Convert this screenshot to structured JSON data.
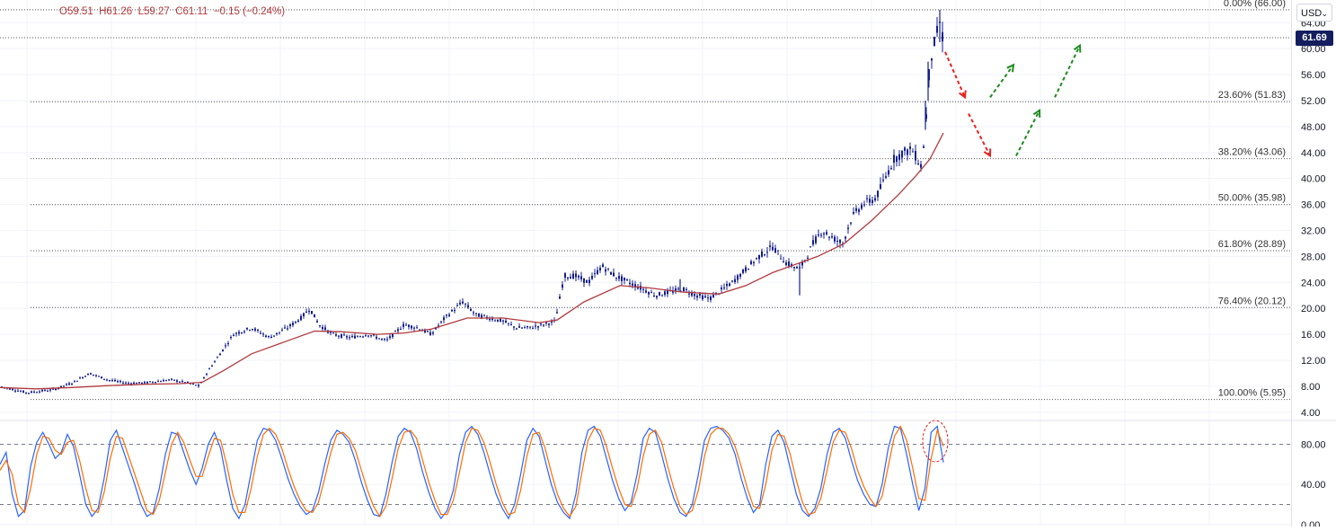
{
  "legend": {
    "open": "O59.51",
    "high": "H61.26",
    "low": "L59.27",
    "close": "C61.11",
    "change": "−0.15 (−0.24%)"
  },
  "toolbar": {
    "currency": "USD"
  },
  "colors": {
    "candle": "#131e8c",
    "ma": "#b23a3e",
    "fib_line": "#555555",
    "stoch_k": "#2962ff",
    "stoch_d": "#ff6d00",
    "down_arrow": "#e8211f",
    "up_arrow": "#1f8a1f",
    "highlight": "#e8211f"
  },
  "chart_data": [
    {
      "type": "candlestick",
      "price_axis": {
        "ticks": [
          "64.00",
          "60.00",
          "56.00",
          "52.00",
          "48.00",
          "44.00",
          "40.00",
          "36.00",
          "32.00",
          "28.00",
          "24.00",
          "20.00",
          "16.00",
          "12.00",
          "8.00",
          "4.00"
        ],
        "ylim": [
          3,
          67.5
        ],
        "current_price": "61.69"
      },
      "fibonacci_levels": [
        {
          "label": "0.00% (66.00)",
          "value": 66.0
        },
        {
          "label": "23.60% (51.83)",
          "value": 51.83
        },
        {
          "label": "38.20% (43.06)",
          "value": 43.06
        },
        {
          "label": "50.00% (35.98)",
          "value": 35.98
        },
        {
          "label": "61.80% (28.89)",
          "value": 28.89
        },
        {
          "label": "76.40% (20.12)",
          "value": 20.12
        },
        {
          "label": "100.00% (5.95)",
          "value": 5.95
        }
      ],
      "current_price_line": 61.69,
      "price_path": [
        [
          0,
          8
        ],
        [
          30,
          7
        ],
        [
          60,
          7.5
        ],
        [
          80,
          8.5
        ],
        [
          100,
          10
        ],
        [
          120,
          9
        ],
        [
          140,
          8.5
        ],
        [
          160,
          8.5
        ],
        [
          190,
          9
        ],
        [
          210,
          8.5
        ],
        [
          222,
          8
        ],
        [
          230,
          10
        ],
        [
          245,
          13
        ],
        [
          260,
          16
        ],
        [
          280,
          17
        ],
        [
          300,
          15.5
        ],
        [
          320,
          17
        ],
        [
          335,
          18.5
        ],
        [
          345,
          20
        ],
        [
          355,
          17.5
        ],
        [
          370,
          16
        ],
        [
          390,
          15.5
        ],
        [
          410,
          16
        ],
        [
          430,
          15
        ],
        [
          450,
          17.5
        ],
        [
          465,
          17
        ],
        [
          480,
          16
        ],
        [
          495,
          18.5
        ],
        [
          515,
          21
        ],
        [
          530,
          19
        ],
        [
          545,
          18.5
        ],
        [
          560,
          18
        ],
        [
          575,
          17
        ],
        [
          590,
          17
        ],
        [
          605,
          17.5
        ],
        [
          618,
          18
        ],
        [
          628,
          25
        ],
        [
          640,
          25
        ],
        [
          655,
          24
        ],
        [
          670,
          26.5
        ],
        [
          685,
          25
        ],
        [
          700,
          24
        ],
        [
          715,
          23
        ],
        [
          730,
          22
        ],
        [
          745,
          22.5
        ],
        [
          760,
          23
        ],
        [
          775,
          22
        ],
        [
          790,
          21.5
        ],
        [
          800,
          22.5
        ],
        [
          815,
          24
        ],
        [
          830,
          26
        ],
        [
          845,
          28
        ],
        [
          860,
          29.5
        ],
        [
          875,
          27
        ],
        [
          890,
          26
        ],
        [
          898,
          28
        ],
        [
          905,
          30
        ],
        [
          915,
          32
        ],
        [
          925,
          31
        ],
        [
          938,
          30
        ],
        [
          948,
          34
        ],
        [
          960,
          36
        ],
        [
          975,
          37
        ],
        [
          985,
          40
        ],
        [
          995,
          43
        ],
        [
          1005,
          44
        ],
        [
          1015,
          44.5
        ],
        [
          1025,
          42
        ],
        [
          1030,
          47
        ],
        [
          1033,
          55
        ],
        [
          1037,
          59
        ],
        [
          1042,
          62
        ],
        [
          1046,
          64
        ],
        [
          1050,
          61.11
        ]
      ],
      "moving_average": [
        [
          0,
          7.8
        ],
        [
          40,
          7.6
        ],
        [
          80,
          7.8
        ],
        [
          120,
          8.1
        ],
        [
          160,
          8.3
        ],
        [
          200,
          8.4
        ],
        [
          225,
          8.6
        ],
        [
          250,
          10.5
        ],
        [
          280,
          13
        ],
        [
          320,
          15
        ],
        [
          350,
          16.5
        ],
        [
          380,
          16.4
        ],
        [
          420,
          16
        ],
        [
          450,
          16.2
        ],
        [
          480,
          16.8
        ],
        [
          520,
          18.5
        ],
        [
          560,
          18.5
        ],
        [
          600,
          17.8
        ],
        [
          620,
          18.2
        ],
        [
          650,
          21
        ],
        [
          690,
          23.5
        ],
        [
          720,
          23.2
        ],
        [
          760,
          22.5
        ],
        [
          800,
          22.2
        ],
        [
          830,
          23.5
        ],
        [
          860,
          25.5
        ],
        [
          890,
          27
        ],
        [
          910,
          28
        ],
        [
          940,
          30
        ],
        [
          970,
          33.5
        ],
        [
          1000,
          37.5
        ],
        [
          1020,
          40.5
        ],
        [
          1035,
          43
        ],
        [
          1050,
          47
        ]
      ],
      "annotations": [
        {
          "kind": "down_arrow",
          "from": [
            1052,
            59.5
          ],
          "to": [
            1074,
            52.5
          ]
        },
        {
          "kind": "down_arrow",
          "from": [
            1078,
            50
          ],
          "to": [
            1102,
            43.5
          ]
        },
        {
          "kind": "up_arrow",
          "from": [
            1102,
            52.5
          ],
          "to": [
            1128,
            57.5
          ]
        },
        {
          "kind": "up_arrow",
          "from": [
            1131,
            43.5
          ],
          "to": [
            1157,
            50.5
          ]
        },
        {
          "kind": "up_arrow",
          "from": [
            1174,
            52.5
          ],
          "to": [
            1202,
            60.5
          ]
        }
      ]
    },
    {
      "type": "line",
      "title": "",
      "indicator_axis": {
        "ticks": [
          "80.00",
          "40.00",
          "0.00"
        ],
        "ylim": [
          -2,
          102
        ],
        "levels": [
          80,
          20
        ]
      },
      "series": [
        {
          "role": "K",
          "values": [
            60,
            72,
            30,
            8,
            14,
            58,
            82,
            92,
            80,
            66,
            72,
            90,
            78,
            50,
            20,
            8,
            16,
            46,
            84,
            94,
            76,
            58,
            40,
            20,
            8,
            12,
            36,
            70,
            92,
            90,
            72,
            54,
            40,
            56,
            80,
            92,
            76,
            44,
            16,
            6,
            20,
            52,
            84,
            96,
            94,
            84,
            66,
            46,
            30,
            18,
            10,
            14,
            32,
            60,
            84,
            94,
            90,
            82,
            64,
            42,
            24,
            10,
            8,
            30,
            62,
            88,
            96,
            92,
            76,
            52,
            32,
            16,
            6,
            14,
            34,
            70,
            92,
            98,
            90,
            72,
            50,
            30,
            16,
            6,
            20,
            50,
            84,
            96,
            88,
            64,
            40,
            22,
            12,
            6,
            30,
            72,
            94,
            98,
            88,
            66,
            44,
            26,
            14,
            22,
            50,
            86,
            96,
            92,
            70,
            46,
            26,
            12,
            8,
            20,
            50,
            84,
            96,
            98,
            94,
            86,
            70,
            46,
            26,
            12,
            20,
            60,
            88,
            94,
            82,
            56,
            30,
            14,
            8,
            16,
            36,
            70,
            92,
            96,
            86,
            64,
            44,
            30,
            20,
            18,
            40,
            76,
            98,
            96,
            70,
            40,
            14,
            36,
            92,
            98,
            62
          ]
        },
        {
          "role": "D",
          "values": [
            54,
            64,
            50,
            20,
            12,
            36,
            70,
            88,
            86,
            74,
            70,
            82,
            84,
            64,
            36,
            14,
            12,
            32,
            66,
            88,
            86,
            68,
            50,
            32,
            14,
            10,
            24,
            52,
            80,
            92,
            82,
            64,
            48,
            48,
            68,
            86,
            84,
            60,
            30,
            12,
            12,
            36,
            68,
            90,
            96,
            90,
            76,
            56,
            38,
            24,
            14,
            12,
            22,
            46,
            72,
            90,
            92,
            86,
            74,
            54,
            34,
            18,
            8,
            18,
            46,
            76,
            92,
            94,
            86,
            64,
            42,
            24,
            10,
            10,
            24,
            52,
            82,
            96,
            94,
            82,
            62,
            40,
            22,
            10,
            12,
            34,
            68,
            90,
            92,
            76,
            52,
            30,
            16,
            8,
            18,
            52,
            84,
            96,
            94,
            78,
            56,
            36,
            20,
            18,
            36,
            68,
            90,
            94,
            82,
            58,
            36,
            18,
            10,
            14,
            34,
            68,
            90,
            96,
            96,
            90,
            78,
            58,
            36,
            18,
            16,
            40,
            74,
            90,
            88,
            70,
            44,
            22,
            10,
            12,
            26,
            54,
            82,
            94,
            92,
            76,
            54,
            38,
            26,
            18,
            28,
            58,
            88,
            98,
            84,
            56,
            26,
            24,
            66,
            94,
            78
          ]
        }
      ]
    }
  ]
}
